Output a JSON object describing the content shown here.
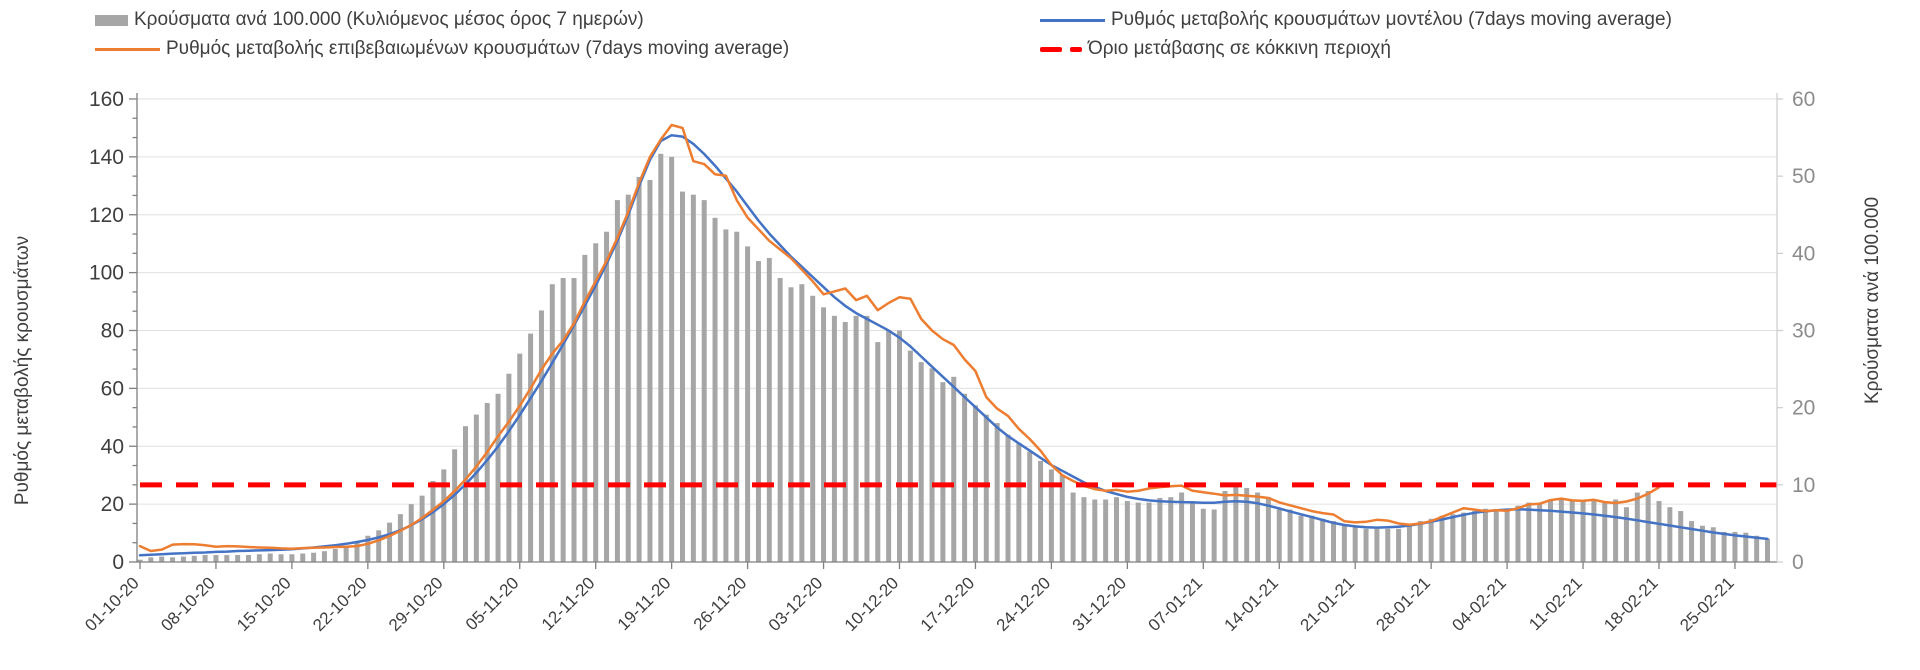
{
  "legend": {
    "items": [
      {
        "label": "Κρούσματα ανά 100.000 (Κυλιόμενος μέσος όρος 7 ημερών)",
        "swatch": "bar",
        "color": "#a6a6a6"
      },
      {
        "label": "Ρυθμός μεταβολής επιβεβαιωμένων κρουσμάτων (7days moving average)",
        "swatch": "line",
        "color": "#ed7d31"
      },
      {
        "label": "Ρυθμός μεταβολής κρουσμάτων μοντέλου (7days moving average)",
        "swatch": "line",
        "color": "#4472c4"
      },
      {
        "label": "Όριο μετάβασης σε κόκκινη περιοχή",
        "swatch": "dash",
        "color": "#ff0000"
      }
    ]
  },
  "chart_data": {
    "type": "bar+line",
    "title": "",
    "left_axis": {
      "title": "Ρυθμός μεταβολής κρουσμάτων",
      "min": 0,
      "max": 160,
      "step": 20,
      "minor_step": 6.667,
      "label_color": "#3f3f3f"
    },
    "right_axis": {
      "title": "Κρούσματα ανά 100.000",
      "min": 0,
      "max": 60,
      "step": 10,
      "label_color": "#8c8c8c"
    },
    "x_tick_labels": [
      "01-10-20",
      "08-10-20",
      "15-10-20",
      "22-10-20",
      "29-10-20",
      "05-11-20",
      "12-11-20",
      "19-11-20",
      "26-11-20",
      "03-12-20",
      "10-12-20",
      "17-12-20",
      "24-12-20",
      "31-12-20",
      "07-01-21",
      "14-01-21",
      "21-01-21",
      "28-01-21",
      "04-02-21",
      "11-02-21",
      "18-02-21",
      "25-02-21"
    ],
    "days_per_tick": 7,
    "grid": true,
    "legend_position": "top",
    "threshold": {
      "name": "Όριο μετάβασης σε κόκκινη περιοχή",
      "axis": "right",
      "value": 10,
      "color": "#ff0000",
      "style": "dashed"
    },
    "series": [
      {
        "name": "Κρούσματα ανά 100.000 (Κυλιόμενος μέσος όρος 7 ημερών)",
        "type": "bar",
        "axis": "right",
        "color": "#a6a6a6",
        "values": [
          0.3,
          0.6,
          0.7,
          0.6,
          0.7,
          0.8,
          0.9,
          0.9,
          0.9,
          0.9,
          0.9,
          1.0,
          1.1,
          1.0,
          1.0,
          1.1,
          1.2,
          1.4,
          1.7,
          2.1,
          2.6,
          3.4,
          4.1,
          5.1,
          6.2,
          7.5,
          8.6,
          10.5,
          12.0,
          14.6,
          17.6,
          19.1,
          20.6,
          21.8,
          24.4,
          27.0,
          29.6,
          32.6,
          36.0,
          36.8,
          36.8,
          39.8,
          41.3,
          42.8,
          46.9,
          47.6,
          49.9,
          49.5,
          52.9,
          52.5,
          48.0,
          47.6,
          46.9,
          44.6,
          43.1,
          42.8,
          40.9,
          39.0,
          39.4,
          36.8,
          35.6,
          36.0,
          34.5,
          33.0,
          31.9,
          31.1,
          31.9,
          31.9,
          28.5,
          30.0,
          30.0,
          27.4,
          25.9,
          25.1,
          23.3,
          24.0,
          21.8,
          20.3,
          19.1,
          18.0,
          16.5,
          15.4,
          14.3,
          13.1,
          12.0,
          11.3,
          9.0,
          8.4,
          8.1,
          8.1,
          8.4,
          7.9,
          7.7,
          7.7,
          8.3,
          8.4,
          9.0,
          7.9,
          6.9,
          6.8,
          9.2,
          9.8,
          9.6,
          9.0,
          8.4,
          6.8,
          6.8,
          6.0,
          6.0,
          5.6,
          5.3,
          4.7,
          4.5,
          4.3,
          4.3,
          4.3,
          4.3,
          4.7,
          5.3,
          5.6,
          6.0,
          6.2,
          6.4,
          6.6,
          6.9,
          6.6,
          6.6,
          7.3,
          7.7,
          7.5,
          7.9,
          8.1,
          7.9,
          8.1,
          8.1,
          7.7,
          8.1,
          7.1,
          9.0,
          9.2,
          7.9,
          7.1,
          6.6,
          5.3,
          4.7,
          4.5,
          3.9,
          3.9,
          3.8,
          3.4,
          3.0
        ]
      },
      {
        "name": "Ρυθμός μεταβολής κρουσμάτων μοντέλου (7days moving average)",
        "type": "line",
        "axis": "left",
        "color": "#4472c4",
        "values": [
          2.3,
          2.5,
          2.7,
          2.9,
          3.0,
          3.2,
          3.3,
          3.5,
          3.6,
          3.8,
          3.9,
          4.0,
          4.1,
          4.2,
          4.4,
          4.7,
          5.0,
          5.4,
          5.8,
          6.3,
          6.9,
          7.6,
          8.5,
          9.6,
          11.0,
          12.7,
          14.8,
          17.2,
          20.0,
          23.2,
          26.8,
          30.8,
          35.2,
          40.0,
          45.2,
          50.8,
          56.6,
          62.6,
          68.8,
          75.2,
          81.8,
          88.6,
          95.6,
          103.0,
          111.0,
          120.0,
          130.0,
          139.0,
          145.5,
          147.5,
          147.0,
          144.5,
          141.0,
          137.0,
          132.5,
          128.0,
          123.0,
          118.0,
          113.5,
          109.5,
          105.5,
          102.0,
          98.5,
          95.0,
          91.5,
          88.5,
          86.0,
          84.0,
          82.0,
          80.0,
          77.5,
          74.5,
          71.0,
          67.5,
          64.0,
          60.5,
          57.0,
          53.5,
          50.0,
          46.5,
          43.5,
          41.0,
          38.5,
          36.0,
          33.5,
          31.5,
          29.5,
          27.5,
          26.0,
          24.5,
          23.5,
          22.5,
          21.8,
          21.3,
          21.0,
          20.8,
          20.7,
          20.6,
          20.5,
          20.5,
          20.8,
          21.0,
          20.8,
          20.3,
          19.5,
          18.5,
          17.5,
          16.5,
          15.5,
          14.5,
          13.5,
          12.8,
          12.3,
          12.0,
          11.9,
          12.0,
          12.2,
          12.6,
          13.2,
          13.9,
          14.7,
          15.5,
          16.3,
          17.0,
          17.5,
          17.9,
          18.1,
          18.2,
          18.1,
          17.9,
          17.7,
          17.4,
          17.1,
          16.8,
          16.4,
          16.0,
          15.5,
          15.0,
          14.4,
          13.8,
          13.2,
          12.6,
          12.0,
          11.4,
          10.8,
          10.2,
          9.7,
          9.2,
          8.8,
          8.4,
          8.0
        ]
      },
      {
        "name": "Ρυθμός μεταβολής επιβεβαιωμένων κρουσμάτων (7days moving average)",
        "type": "line",
        "axis": "left",
        "color": "#ed7d31",
        "values": [
          5.5,
          3.8,
          4.3,
          6.0,
          6.2,
          6.1,
          5.8,
          5.3,
          5.5,
          5.4,
          5.2,
          5.0,
          4.9,
          4.7,
          4.6,
          4.8,
          4.9,
          5.0,
          5.2,
          5.3,
          5.5,
          6.3,
          7.5,
          9.0,
          10.8,
          12.8,
          15.2,
          18.0,
          21.0,
          24.5,
          28.5,
          33.0,
          38.0,
          43.5,
          48.5,
          54.0,
          60.0,
          66.5,
          72.0,
          76.5,
          82.5,
          90.0,
          97.0,
          104.0,
          112.0,
          121.0,
          131.0,
          140.0,
          146.0,
          151.0,
          150.0,
          138.5,
          137.5,
          134.0,
          133.5,
          125.0,
          119.0,
          115.0,
          111.0,
          108.0,
          105.0,
          101.0,
          97.0,
          92.5,
          93.5,
          94.5,
          90.5,
          92.0,
          87.0,
          89.5,
          91.5,
          91.0,
          84.0,
          80.0,
          77.0,
          75.0,
          70.0,
          66.0,
          57.0,
          53.0,
          50.5,
          46.0,
          42.5,
          38.5,
          33.5,
          30.0,
          28.0,
          26.3,
          25.2,
          24.6,
          24.9,
          24.3,
          24.6,
          25.4,
          25.9,
          26.2,
          26.4,
          24.6,
          24.1,
          23.6,
          23.0,
          23.2,
          22.9,
          22.6,
          22.1,
          20.6,
          19.6,
          18.6,
          17.6,
          16.9,
          16.4,
          14.1,
          13.7,
          13.9,
          14.6,
          14.3,
          13.3,
          12.9,
          13.3,
          14.1,
          15.6,
          17.1,
          18.6,
          18.1,
          17.6,
          17.9,
          17.7,
          18.6,
          19.9,
          20.1,
          21.4,
          21.9,
          21.3,
          21.1,
          21.5,
          20.7,
          20.4,
          20.9,
          21.9,
          23.6,
          25.8
        ]
      }
    ],
    "colors": {
      "grid": "#e0e0e0",
      "axis": "#808080",
      "right_axis_line": "#cfcfcf",
      "text": "#3f3f3f"
    }
  }
}
